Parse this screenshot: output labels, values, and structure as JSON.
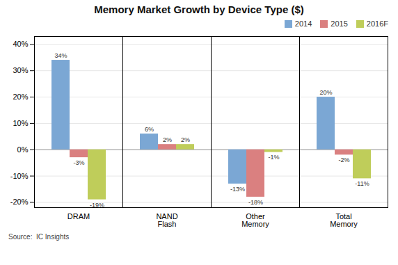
{
  "chart_data": {
    "type": "bar",
    "title": "Memory Market Growth by Device Type ($)",
    "categories": [
      "DRAM",
      "NAND\nFlash",
      "Other\nMemory",
      "Total\nMemory"
    ],
    "series": [
      {
        "name": "2014",
        "color": "#7BA7D4",
        "values": [
          34,
          6,
          -13,
          20
        ],
        "value_labels": [
          "34%",
          "6%",
          "-13%",
          "20%"
        ]
      },
      {
        "name": "2015",
        "color": "#DA8080",
        "values": [
          -3,
          2,
          -18,
          -2
        ],
        "value_labels": [
          "-3%",
          "2%",
          "-18%",
          "-2%"
        ]
      },
      {
        "name": "2016F",
        "color": "#BFCD5A",
        "values": [
          -19,
          2,
          -1,
          -11
        ],
        "value_labels": [
          "-19%",
          "2%",
          "-1%",
          "-11%"
        ]
      }
    ],
    "ylim": [
      -22,
      43
    ],
    "yticks": [
      {
        "value": -20,
        "label": "-20%"
      },
      {
        "value": -10,
        "label": "-10%"
      },
      {
        "value": 0,
        "label": "0%"
      },
      {
        "value": 10,
        "label": "10%"
      },
      {
        "value": 20,
        "label": "20%"
      },
      {
        "value": 30,
        "label": "30%"
      },
      {
        "value": 40,
        "label": "40%"
      }
    ],
    "grid": true,
    "legend": "upper right",
    "data_labels": true,
    "annotations": [
      "Source:  IC Insights"
    ]
  }
}
